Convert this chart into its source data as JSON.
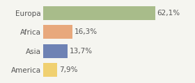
{
  "categories": [
    "Europa",
    "Africa",
    "Asia",
    "America"
  ],
  "values": [
    62.1,
    16.3,
    13.7,
    7.9
  ],
  "labels": [
    "62,1%",
    "16,3%",
    "13,7%",
    "7,9%"
  ],
  "colors": [
    "#a8bc8a",
    "#e8a87c",
    "#6e82b4",
    "#f0d070"
  ],
  "xlim": [
    0,
    82
  ],
  "background_color": "#f5f5f0",
  "bar_height": 0.72,
  "label_fontsize": 7.5,
  "tick_fontsize": 7.5
}
